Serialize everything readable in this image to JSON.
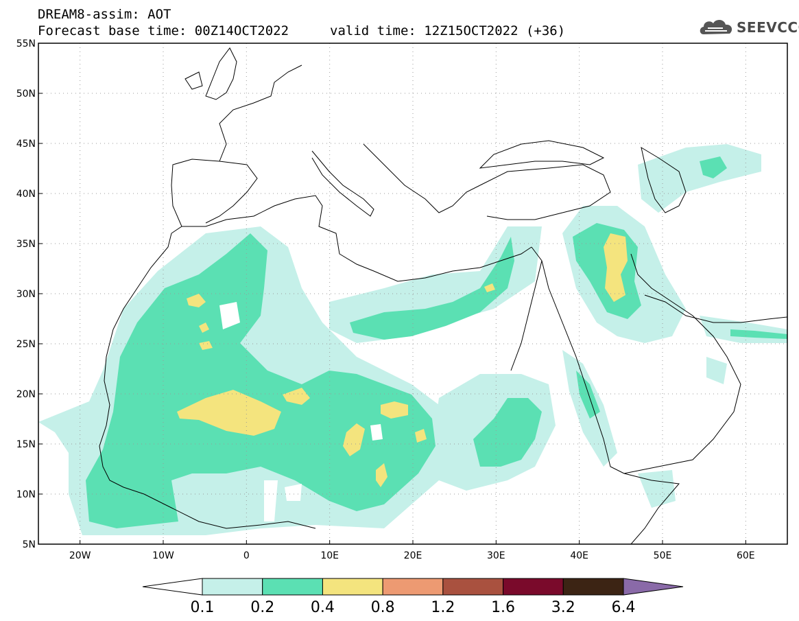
{
  "header": {
    "title": "DREAM8-assim: AOT",
    "base_time": "Forecast base time: 00Z14OCT2022",
    "valid_time": "valid time: 12Z15OCT2022 (+36)",
    "logo_text": "SEEVCCC",
    "logo_icon": "cloud-icon"
  },
  "map": {
    "lat_labels": [
      "55N",
      "50N",
      "45N",
      "40N",
      "35N",
      "30N",
      "25N",
      "20N",
      "15N",
      "10N",
      "5N"
    ],
    "lon_labels": [
      "20W",
      "10W",
      "0",
      "10E",
      "20E",
      "30E",
      "40E",
      "50E",
      "60E"
    ],
    "extent": {
      "lon_min": -25,
      "lon_max": 65,
      "lat_min": 5,
      "lat_max": 55
    }
  },
  "colorbar": {
    "labels": [
      "0.1",
      "0.2",
      "0.4",
      "0.8",
      "1.2",
      "1.6",
      "3.2",
      "6.4"
    ],
    "colors": [
      "#ffffff",
      "#c5f0e9",
      "#5be0b3",
      "#f4e47e",
      "#ed9a72",
      "#a9513f",
      "#7a0a2b",
      "#3c2414",
      "#8a6aa8"
    ]
  },
  "colors": {
    "level1": "#c5f0e9",
    "level2": "#5be0b3",
    "level3": "#f4e47e"
  }
}
